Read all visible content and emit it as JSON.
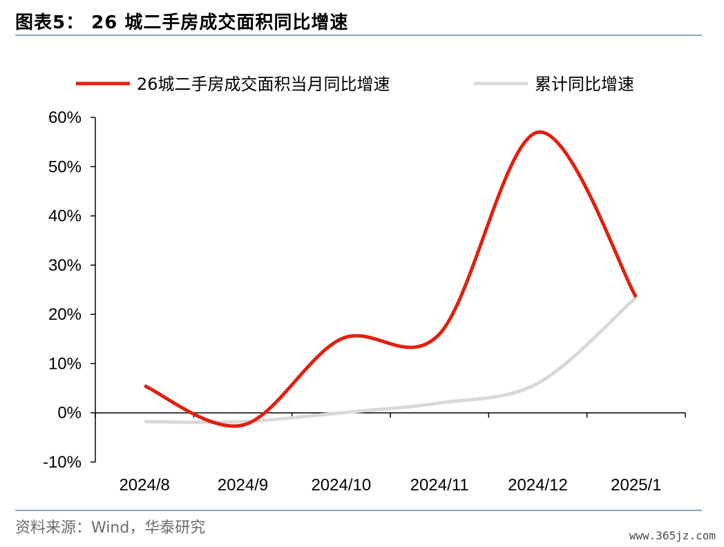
{
  "figure": {
    "title": "图表5：   26 城二手房成交面积同比增速",
    "source": "资料来源：Wind，华泰研究",
    "watermark": "www.365jz.com"
  },
  "chart_data": {
    "type": "line",
    "categories": [
      "2024/8",
      "2024/9",
      "2024/10",
      "2024/11",
      "2024/12",
      "2025/1"
    ],
    "series": [
      {
        "name": "26城二手房成交面积当月同比增速",
        "values": [
          5.5,
          -2.5,
          15.0,
          16.0,
          57.0,
          23.5
        ],
        "color": "#e02010",
        "smooth": true
      },
      {
        "name": "累计同比增速",
        "values": [
          -1.8,
          -1.8,
          0.0,
          2.0,
          6.0,
          23.5
        ],
        "color": "#d9d9d9",
        "smooth": true
      }
    ],
    "ylim": [
      -10,
      60
    ],
    "yticks": [
      -10,
      0,
      10,
      20,
      30,
      40,
      50,
      60
    ],
    "ytick_labels": [
      "-10%",
      "0%",
      "10%",
      "20%",
      "30%",
      "40%",
      "50%",
      "60%"
    ],
    "legend_position": "top",
    "grid": false
  }
}
